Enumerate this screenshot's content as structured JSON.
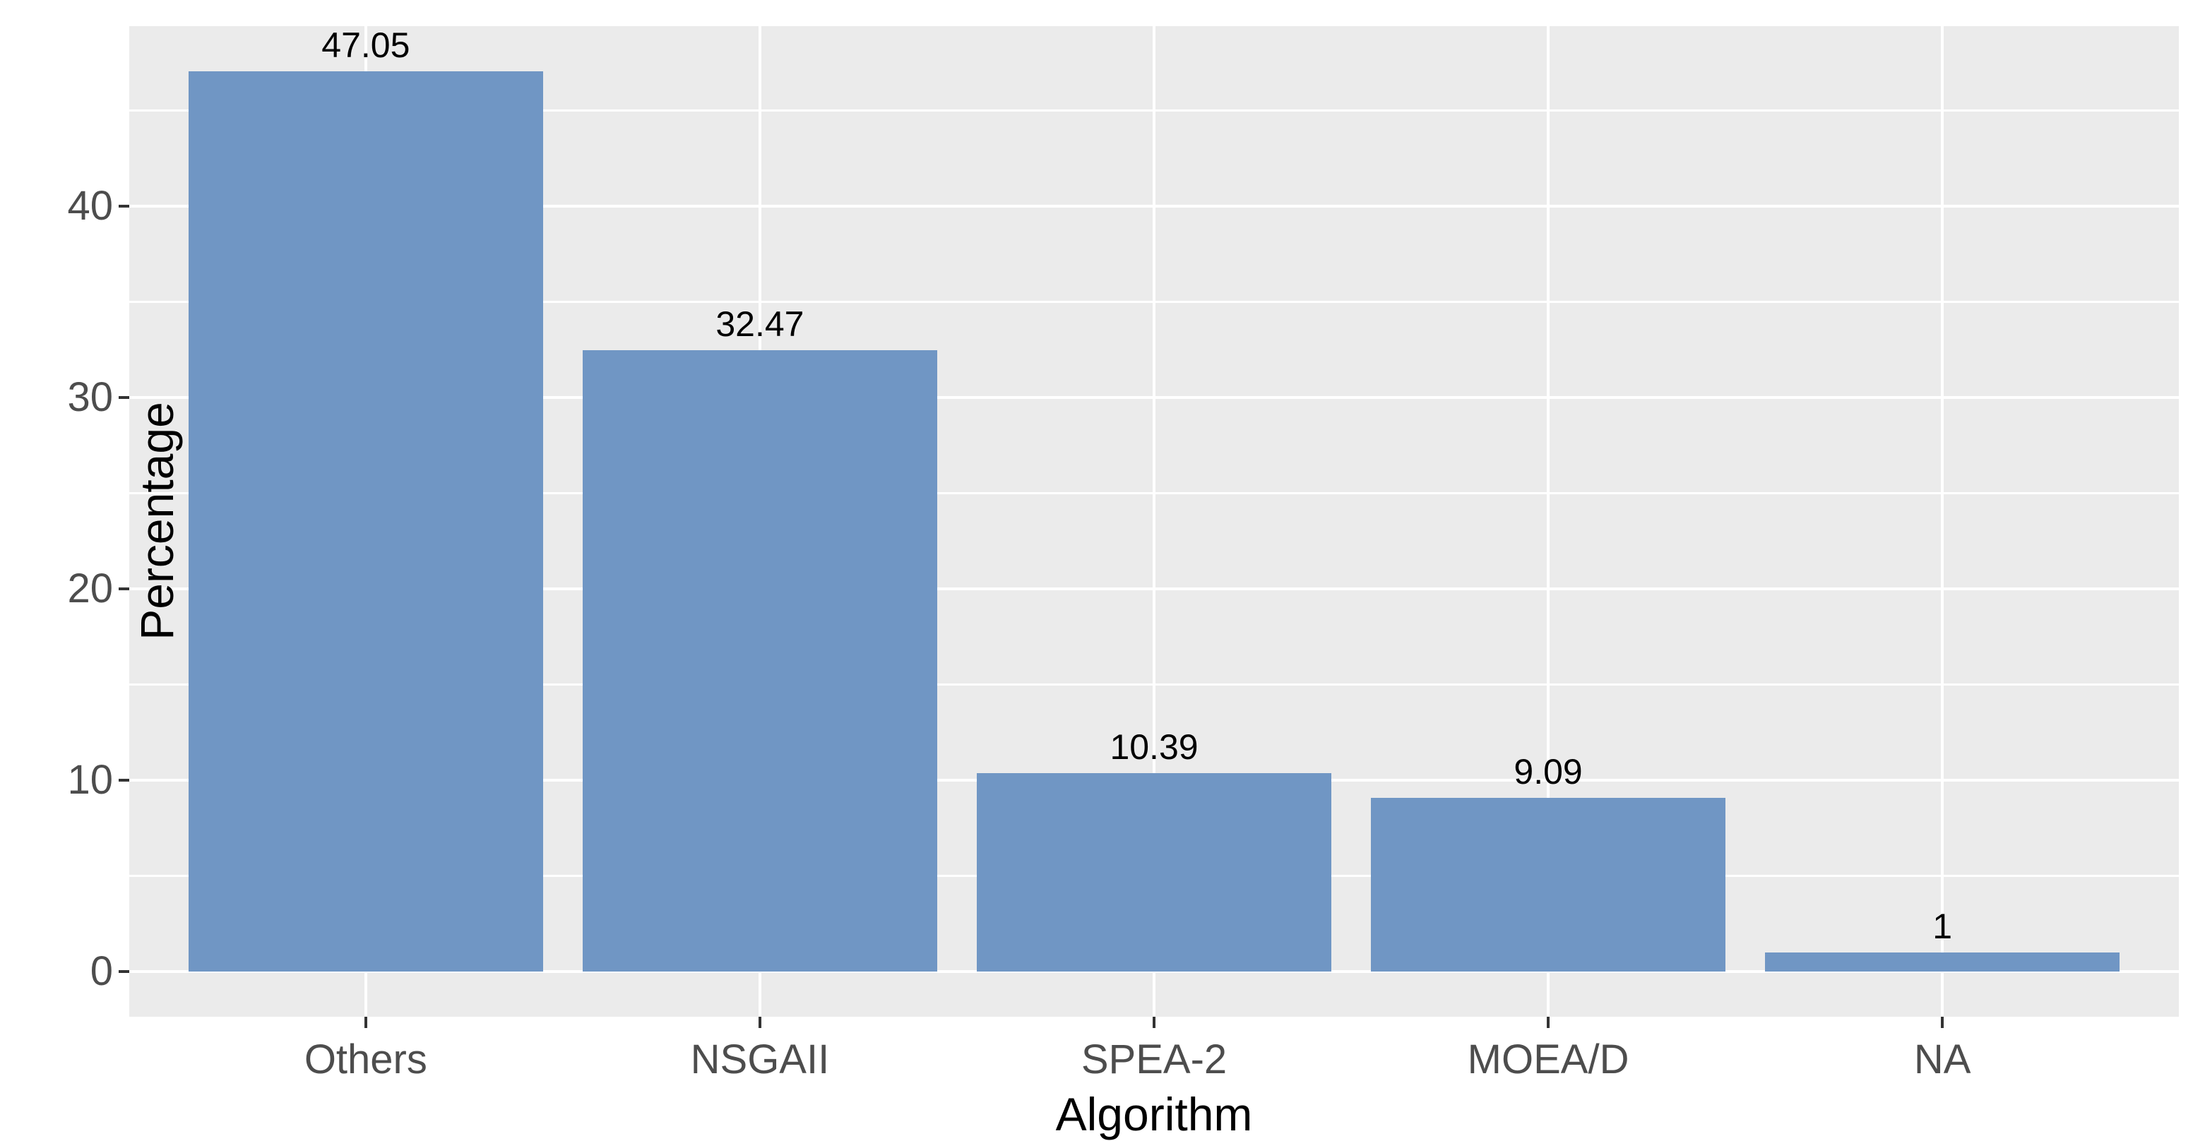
{
  "chart_data": {
    "type": "bar",
    "title": "",
    "categories": [
      "Others",
      "NSGAII",
      "SPEA-2",
      "MOEA/D",
      "NA"
    ],
    "values": [
      47.05,
      32.47,
      10.39,
      9.09,
      1
    ],
    "bar_labels": [
      "47.05",
      "32.47",
      "10.39",
      "9.09",
      "1"
    ],
    "xlabel": "Algorithm",
    "ylabel": "Percentage",
    "y_ticks": [
      0,
      10,
      20,
      30,
      40
    ],
    "y_minor_ticks": [
      5,
      15,
      25,
      35,
      45
    ],
    "ylim": [
      0,
      47.05
    ],
    "grid": "on",
    "legend_position": "none",
    "colors": {
      "bar_fill": "#7096C4",
      "panel_background": "#EBEBEB",
      "gridline": "#FFFFFF",
      "page_background": "#FFFFFF",
      "tick_label": "#4D4D4D",
      "axis_title": "#000000",
      "bar_label": "#000000",
      "tick_mark": "#333333"
    }
  }
}
